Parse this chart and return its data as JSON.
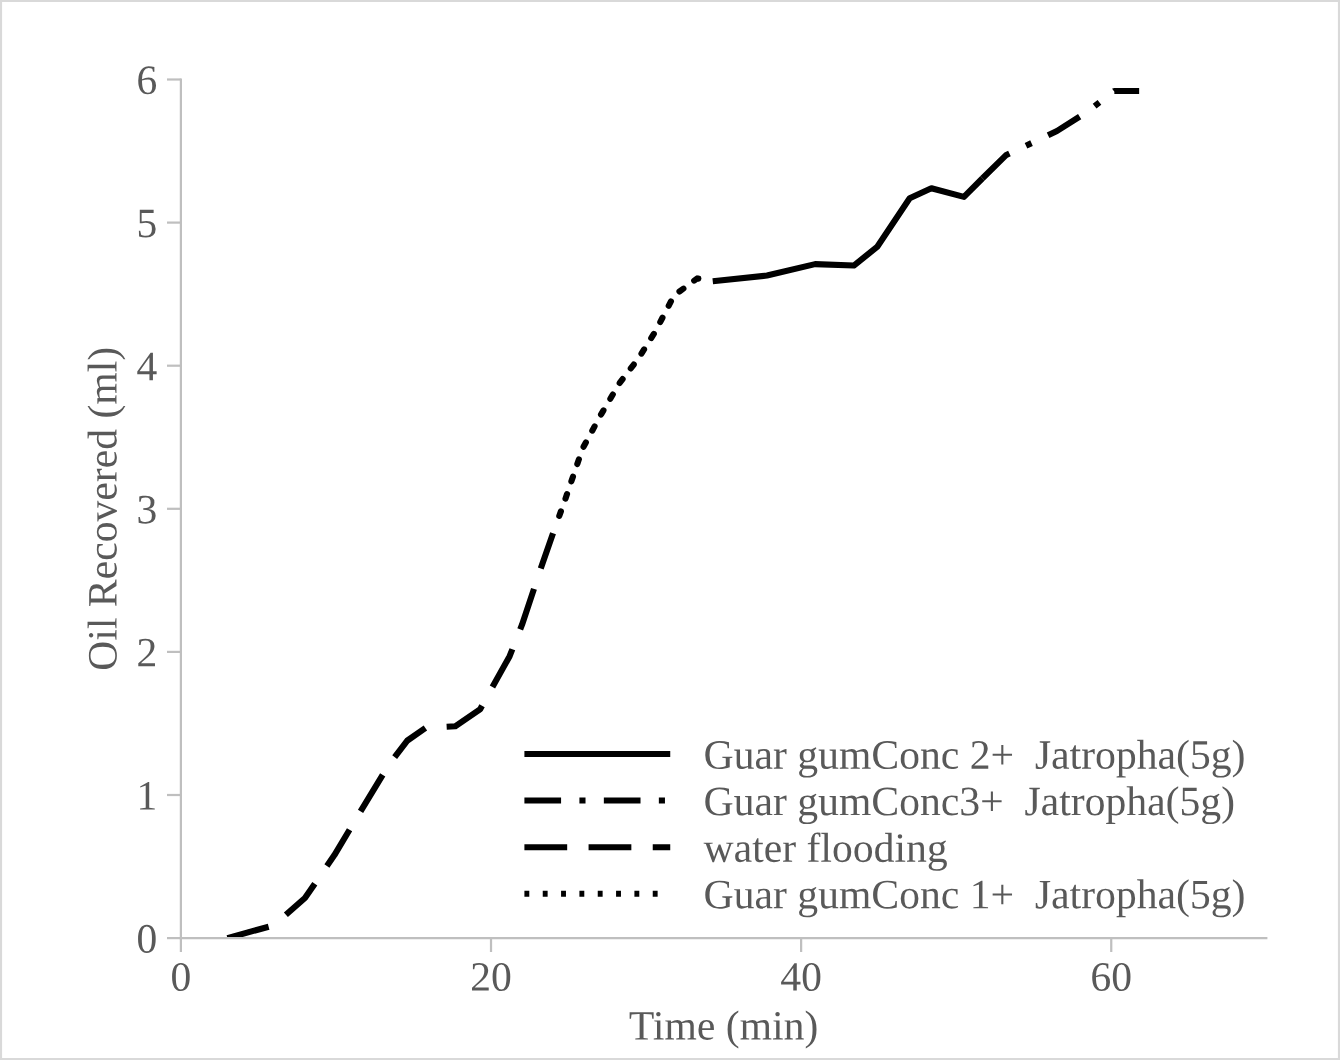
{
  "chart_data": {
    "type": "line",
    "xlabel": "Time (min)",
    "ylabel": "Oil Recovered (ml)",
    "xlim": [
      0,
      70
    ],
    "xticks": [
      0,
      20,
      40,
      60
    ],
    "ylim": [
      0,
      6
    ],
    "yticks": [
      0,
      1,
      2,
      3,
      4,
      5,
      6
    ],
    "grid": false,
    "legend": "bottom right",
    "marker": "none",
    "series": [
      {
        "name": "Guar gumConc 2+  Jatropha(5g)",
        "color": "#000000",
        "line_style": "solid",
        "x": [
          34.3,
          37.8,
          40.9,
          43.4,
          44.9,
          47.0,
          48.4,
          50.5,
          51.7
        ],
        "values": [
          4.59,
          4.63,
          4.71,
          4.7,
          4.83,
          5.17,
          5.24,
          5.18,
          5.31
        ]
      },
      {
        "name": "Guar gumConc3+  Jatropha(5g)",
        "color": "#000000",
        "line_style": "dashdot",
        "x": [
          51.7,
          53.2,
          56.5,
          58.4,
          60.2,
          61.8
        ],
        "values": [
          5.31,
          5.47,
          5.64,
          5.77,
          5.92,
          5.92
        ]
      },
      {
        "name": "water flooding",
        "color": "#000000",
        "line_style": "dashed",
        "x": [
          3.0,
          6.0,
          8.0,
          9.9,
          11.5,
          13.4,
          14.6,
          15.8,
          17.7,
          19.3,
          21.2,
          22.0,
          23.2,
          24.0
        ],
        "values": [
          0,
          0.09,
          0.28,
          0.58,
          0.87,
          1.21,
          1.38,
          1.47,
          1.48,
          1.6,
          1.97,
          2.19,
          2.58,
          2.83
        ]
      },
      {
        "name": "Guar gumConc 1+  Jatropha(5g)",
        "color": "#000000",
        "line_style": "dotted",
        "x": [
          24.4,
          24.8,
          25.9,
          27.1,
          28.3,
          29.5,
          30.6,
          31.8,
          33.3,
          34.0
        ],
        "values": [
          2.95,
          3.07,
          3.42,
          3.66,
          3.88,
          4.05,
          4.24,
          4.49,
          4.61,
          4.6
        ]
      }
    ]
  }
}
